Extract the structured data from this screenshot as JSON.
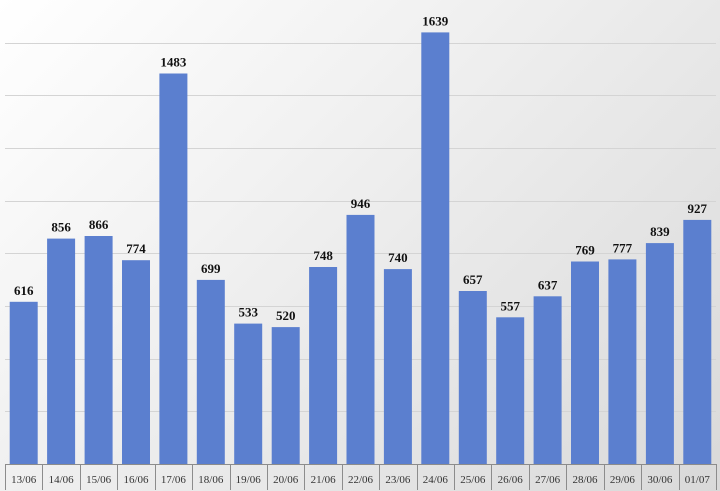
{
  "chart_data": {
    "type": "bar",
    "title": "",
    "xlabel": "",
    "ylabel": "",
    "categories": [
      "13/06",
      "14/06",
      "15/06",
      "16/06",
      "17/06",
      "18/06",
      "19/06",
      "20/06",
      "21/06",
      "22/06",
      "23/06",
      "24/06",
      "25/06",
      "26/06",
      "27/06",
      "28/06",
      "29/06",
      "30/06",
      "01/07"
    ],
    "values": [
      616,
      856,
      866,
      774,
      1483,
      699,
      533,
      520,
      748,
      946,
      740,
      1639,
      657,
      557,
      637,
      769,
      777,
      839,
      927
    ],
    "ylim": [
      0,
      1800
    ],
    "grid": true,
    "legend": "none",
    "colors": {
      "bar": "#5b7fcf",
      "grid": "#d4d4d4"
    }
  }
}
